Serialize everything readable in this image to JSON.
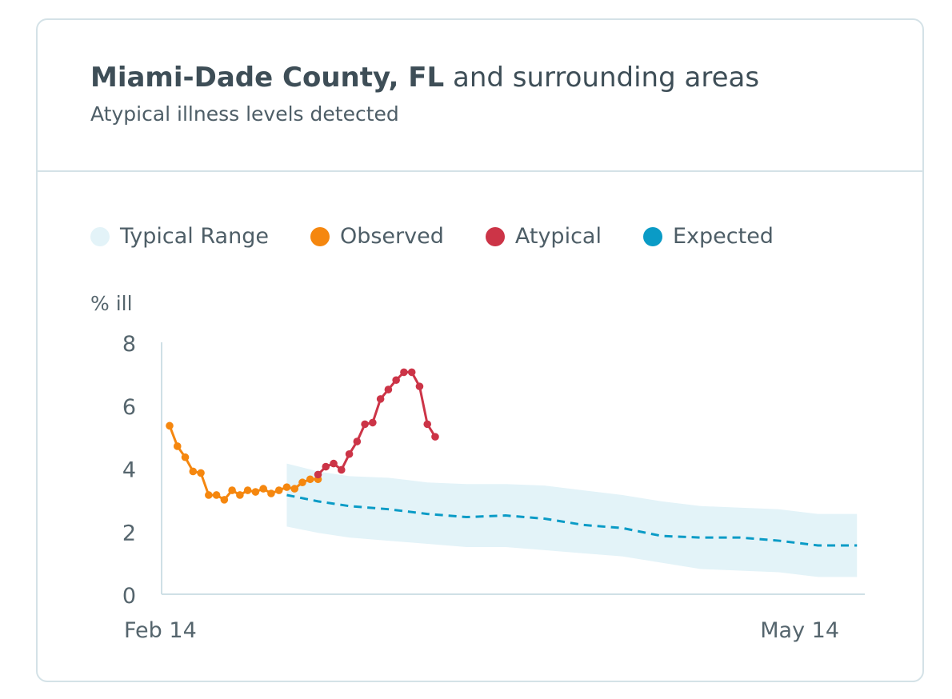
{
  "header": {
    "title_bold": "Miami-Dade County, FL",
    "title_rest": "and surrounding areas",
    "subtitle": "Atypical illness levels detected"
  },
  "legend": [
    {
      "label": "Typical Range",
      "color": "#e3f3f8"
    },
    {
      "label": "Observed",
      "color": "#f5870f"
    },
    {
      "label": "Atypical",
      "color": "#cc3447"
    },
    {
      "label": "Expected",
      "color": "#0a9bc6"
    }
  ],
  "chart_data": {
    "type": "line",
    "ylabel": "% ill",
    "ylim": [
      0,
      8
    ],
    "yticks": [
      "0",
      "2",
      "4",
      "6",
      "8"
    ],
    "xlim": [
      0,
      89
    ],
    "xtick_labels": [
      "Feb 14",
      "May 14"
    ],
    "typical_range": {
      "x": [
        15,
        19,
        23,
        28,
        33,
        38,
        43,
        48,
        53,
        58,
        63,
        68,
        73,
        78,
        83,
        88
      ],
      "lower": [
        2.15,
        1.95,
        1.8,
        1.7,
        1.6,
        1.5,
        1.5,
        1.4,
        1.3,
        1.2,
        1.0,
        0.8,
        0.75,
        0.7,
        0.55,
        0.55
      ],
      "upper": [
        4.15,
        3.9,
        3.75,
        3.7,
        3.55,
        3.5,
        3.5,
        3.45,
        3.3,
        3.15,
        2.95,
        2.8,
        2.75,
        2.7,
        2.55,
        2.55
      ]
    },
    "series": [
      {
        "name": "Observed",
        "color": "#f5870f",
        "x": [
          0,
          1,
          2,
          3,
          4,
          5,
          6,
          7,
          8,
          9,
          10,
          11,
          12,
          13,
          14,
          15,
          16,
          17,
          18,
          19
        ],
        "values": [
          5.35,
          4.7,
          4.35,
          3.9,
          3.85,
          3.15,
          3.15,
          3.0,
          3.3,
          3.15,
          3.3,
          3.25,
          3.35,
          3.2,
          3.3,
          3.4,
          3.35,
          3.55,
          3.65,
          3.65
        ]
      },
      {
        "name": "Atypical",
        "color": "#cc3447",
        "x": [
          19,
          20,
          21,
          22,
          23,
          24,
          25,
          26,
          27,
          28,
          29,
          30,
          31,
          32,
          33,
          34
        ],
        "values": [
          3.8,
          4.05,
          4.15,
          3.95,
          4.45,
          4.85,
          5.4,
          5.45,
          6.2,
          6.5,
          6.8,
          7.05,
          7.05,
          6.6,
          5.4,
          5.0
        ]
      },
      {
        "name": "Expected",
        "color": "#0a9bc6",
        "x": [
          15,
          19,
          23,
          28,
          33,
          38,
          43,
          48,
          53,
          58,
          63,
          68,
          73,
          78,
          83,
          88
        ],
        "values": [
          3.15,
          2.95,
          2.8,
          2.7,
          2.55,
          2.45,
          2.5,
          2.4,
          2.2,
          2.1,
          1.85,
          1.8,
          1.8,
          1.7,
          1.55,
          1.55
        ]
      }
    ]
  }
}
